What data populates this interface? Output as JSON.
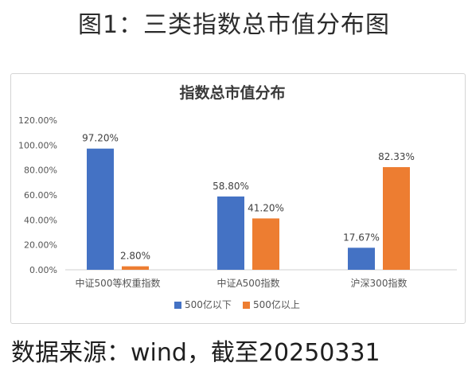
{
  "figure_title": "图1：三类指数总市值分布图",
  "source_note": "数据来源：wind，截至20250331",
  "chart_data": {
    "type": "bar",
    "title": "指数总市值分布",
    "categories": [
      "中证500等权重指数",
      "中证A500指数",
      "沪深300指数"
    ],
    "series": [
      {
        "name": "500亿以下",
        "color": "#4472C4",
        "values": [
          97.2,
          58.8,
          17.67
        ],
        "labels": [
          "97.20%",
          "58.80%",
          "17.67%"
        ]
      },
      {
        "name": "500亿以上",
        "color": "#ED7D31",
        "values": [
          2.8,
          41.2,
          82.33
        ],
        "labels": [
          "2.80%",
          "41.20%",
          "82.33%"
        ]
      }
    ],
    "yticks": [
      "0.00%",
      "20.00%",
      "40.00%",
      "60.00%",
      "80.00%",
      "100.00%",
      "120.00%"
    ],
    "ylim": [
      0,
      120
    ],
    "grid": false,
    "legend_position": "bottom"
  }
}
